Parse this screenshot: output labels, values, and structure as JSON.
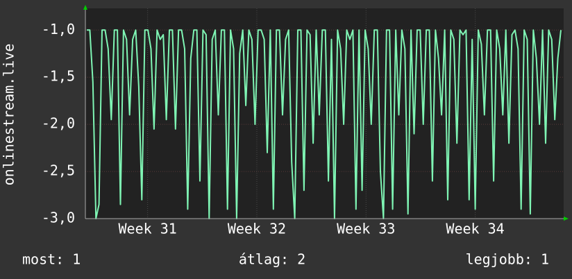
{
  "chart_data": {
    "type": "line",
    "y_label": "onlinestream.live",
    "xlim": [
      30.43,
      34.81
    ],
    "xticks": [
      {
        "value": 31,
        "label": "Week 31"
      },
      {
        "value": 32,
        "label": "Week 32"
      },
      {
        "value": 33,
        "label": "Week 33"
      },
      {
        "value": 34,
        "label": "Week 34"
      }
    ],
    "ylim": [
      -3,
      -0.77
    ],
    "yticks": [
      {
        "value": -3,
        "label": "-3,0"
      },
      {
        "value": -2.5,
        "label": "-2,5"
      },
      {
        "value": -2,
        "label": "-2,0"
      },
      {
        "value": -1.5,
        "label": "-1,5"
      },
      {
        "value": -1,
        "label": "-1,0"
      }
    ],
    "grid": true,
    "series": [
      {
        "name": "onlinestream.live",
        "color": "#7ff5b4",
        "values": [
          -1,
          -1,
          -1.55,
          -3,
          -2.85,
          -1,
          -1,
          -1.2,
          -1.95,
          -1,
          -1,
          -2.85,
          -1,
          -1.1,
          -1.9,
          -1.1,
          -1,
          -1.6,
          -2.8,
          -1,
          -1,
          -1.2,
          -2.05,
          -1,
          -1.1,
          -1.05,
          -1.95,
          -1,
          -1,
          -2.05,
          -1,
          -1,
          -1.2,
          -2.9,
          -1.3,
          -1,
          -1,
          -2.6,
          -1,
          -1.05,
          -3,
          -1.1,
          -1,
          -1.9,
          -1,
          -1,
          -2.9,
          -1,
          -1.2,
          -3,
          -1.25,
          -1,
          -1.8,
          -1,
          -1.1,
          -2.0,
          -1,
          -1,
          -1.1,
          -2.3,
          -1,
          -2.9,
          -1,
          -1,
          -1.9,
          -1.1,
          -1,
          -2.4,
          -3,
          -1,
          -1,
          -2.7,
          -1,
          -1.05,
          -2.2,
          -1,
          -1.9,
          -1,
          -1,
          -2.6,
          -1.1,
          -3,
          -1,
          -1.2,
          -2.0,
          -1,
          -1.1,
          -1,
          -2.9,
          -1,
          -2.7,
          -1,
          -1.2,
          -2.0,
          -1,
          -1,
          -2.5,
          -3,
          -1,
          -1,
          -2.9,
          -1,
          -1.9,
          -1,
          -1.2,
          -2.95,
          -1,
          -2.1,
          -1,
          -1,
          -2.0,
          -1,
          -1,
          -2.6,
          -1,
          -1.3,
          -1.9,
          -1,
          -2.8,
          -1,
          -1.1,
          -2.2,
          -1,
          -1.05,
          -1,
          -2.8,
          -1.1,
          -2.9,
          -1,
          -1.15,
          -1.9,
          -1,
          -1,
          -2.6,
          -1,
          -1.2,
          -1.9,
          -1,
          -2.2,
          -1.05,
          -1,
          -1.2,
          -2.9,
          -1,
          -1.1,
          -2.95,
          -1,
          -1.3,
          -2.0,
          -1,
          -2.2,
          -1,
          -1.1,
          -1.95,
          -1.3,
          -1
        ]
      }
    ]
  },
  "legend": {
    "current": "most: 1",
    "average": "átlag: 2",
    "max": "legjobb: 1"
  }
}
